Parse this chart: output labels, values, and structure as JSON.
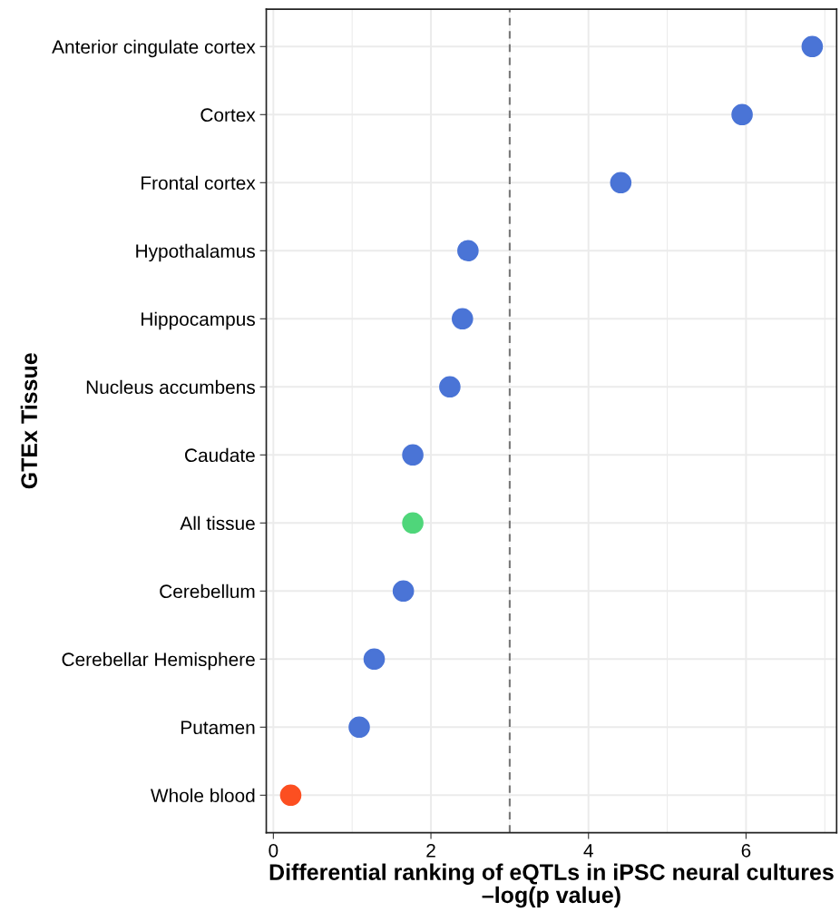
{
  "chart_data": {
    "type": "scatter",
    "orientation": "horizontal",
    "categories": [
      "Anterior cingulate cortex",
      "Cortex",
      "Frontal cortex",
      "Hypothalamus",
      "Hippocampus",
      "Nucleus accumbens",
      "Caudate",
      "All tissue",
      "Cerebellum",
      "Cerebellar Hemisphere",
      "Putamen",
      "Whole blood"
    ],
    "values": [
      6.84,
      5.95,
      4.41,
      2.47,
      2.4,
      2.24,
      1.77,
      1.77,
      1.65,
      1.28,
      1.09,
      0.22
    ],
    "colors": [
      "#4a74d6",
      "#4a74d6",
      "#4a74d6",
      "#4a74d6",
      "#4a74d6",
      "#4a74d6",
      "#4a74d6",
      "#4fd67a",
      "#4a74d6",
      "#4a74d6",
      "#4a74d6",
      "#fc4f21"
    ],
    "xlim": [
      -0.09,
      7.15
    ],
    "xticks": [
      0,
      2,
      4,
      6
    ],
    "xlabel": "Differential ranking of eQTLs in iPSC neural cultures\n–log(p value)",
    "ylabel": "GTEx Tissue",
    "ref_lines": [
      {
        "axis": "x",
        "value": 3,
        "color": "#777777",
        "line_style": "dashed"
      }
    ],
    "grid": true,
    "marker": "circle",
    "legend": false
  }
}
